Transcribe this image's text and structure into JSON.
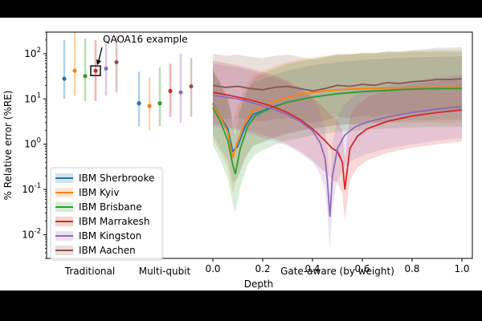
{
  "chart_data": {
    "type": "line",
    "title": "",
    "xlabel": "Depth",
    "ylabel": "% Relative error (%RE)",
    "yscale": "log",
    "ylim": [
      0.003,
      300
    ],
    "xlim": [
      -0.03,
      1.03
    ],
    "grid": false,
    "legend_position": "bottom-left",
    "section_labels": [
      "Traditional",
      "Multi-qubit",
      "Gate-aware (by weight)"
    ],
    "x_ticks": [
      "0.0",
      "0.2",
      "0.4",
      "0.6",
      "0.8",
      "1.0"
    ],
    "y_ticks": [
      {
        "base": "10",
        "exp": "-2",
        "value": 0.01
      },
      {
        "base": "10",
        "exp": "-1",
        "value": 0.1
      },
      {
        "base": "10",
        "exp": "0",
        "value": 1
      },
      {
        "base": "10",
        "exp": "1",
        "value": 10
      },
      {
        "base": "10",
        "exp": "2",
        "value": 100
      }
    ],
    "annotation": {
      "text": "QAOA16 example",
      "target_group": "traditional",
      "target_series": "IBM Marrakesh"
    },
    "series": [
      {
        "name": "IBM Sherbrooke",
        "color": "#1f77b4",
        "traditional": {
          "value": 28,
          "low": 10,
          "high": 200
        },
        "multi_qubit": {
          "value": 8,
          "low": 2.5,
          "high": 40
        },
        "gate_aware": {
          "x": [
            0,
            0.03,
            0.06,
            0.08,
            0.1,
            0.13,
            0.16,
            0.2,
            0.25,
            0.3,
            0.4,
            0.5,
            0.6,
            0.7,
            0.8,
            0.9,
            1.0
          ],
          "y": [
            8,
            4,
            2.2,
            0.7,
            0.9,
            2.5,
            4.5,
            5.5,
            7,
            8.5,
            11,
            13,
            14.5,
            15.5,
            16.5,
            17,
            17.5
          ],
          "band": 5
        }
      },
      {
        "name": "IBM Kyiv",
        "color": "#ff7f0e",
        "traditional": {
          "value": 42,
          "low": 12,
          "high": 320
        },
        "multi_qubit": {
          "value": 7,
          "low": 2,
          "high": 30
        },
        "gate_aware": {
          "x": [
            0,
            0.03,
            0.06,
            0.08,
            0.1,
            0.13,
            0.16,
            0.2,
            0.25,
            0.3,
            0.4,
            0.5,
            0.6,
            0.7,
            0.8,
            0.9,
            1.0
          ],
          "y": [
            7.5,
            4,
            1.8,
            0.5,
            1.2,
            3,
            5.5,
            7,
            9,
            11,
            14,
            16,
            17,
            17.5,
            18,
            18,
            18
          ],
          "band": 6
        }
      },
      {
        "name": "IBM Brisbane",
        "color": "#2ca02c",
        "traditional": {
          "value": 32,
          "low": 9,
          "high": 220
        },
        "multi_qubit": {
          "value": 8,
          "low": 2.5,
          "high": 50
        },
        "gate_aware": {
          "x": [
            0,
            0.03,
            0.06,
            0.08,
            0.09,
            0.11,
            0.14,
            0.17,
            0.2,
            0.25,
            0.3,
            0.4,
            0.5,
            0.6,
            0.7,
            0.8,
            0.9,
            1.0
          ],
          "y": [
            6.5,
            3.2,
            1.2,
            0.35,
            0.22,
            0.8,
            2.5,
            4.2,
            5.2,
            6.8,
            8.5,
            11,
            13,
            14.5,
            15.5,
            16.5,
            17,
            17
          ],
          "band": 7
        }
      },
      {
        "name": "IBM Marrakesh",
        "color": "#d62728",
        "traditional": {
          "value": 42,
          "low": 9,
          "high": 200
        },
        "multi_qubit": {
          "value": 15,
          "low": 4,
          "high": 60
        },
        "gate_aware": {
          "x": [
            0,
            0.05,
            0.1,
            0.15,
            0.2,
            0.25,
            0.3,
            0.35,
            0.4,
            0.45,
            0.48,
            0.5,
            0.52,
            0.53,
            0.55,
            0.58,
            0.62,
            0.7,
            0.8,
            0.9,
            1.0
          ],
          "y": [
            14,
            12.5,
            11,
            9.5,
            8,
            6.5,
            5,
            3.5,
            2.2,
            1.2,
            0.8,
            0.7,
            0.4,
            0.1,
            0.8,
            1.5,
            2.2,
            3.2,
            4.2,
            5,
            5.7
          ],
          "band": 5
        }
      },
      {
        "name": "IBM Kingston",
        "color": "#9467bd",
        "traditional": {
          "value": 47,
          "low": 12,
          "high": 220
        },
        "multi_qubit": {
          "value": 14,
          "low": 3,
          "high": 100
        },
        "gate_aware": {
          "x": [
            0,
            0.05,
            0.1,
            0.15,
            0.2,
            0.25,
            0.3,
            0.35,
            0.4,
            0.43,
            0.45,
            0.46,
            0.47,
            0.48,
            0.5,
            0.53,
            0.57,
            0.62,
            0.7,
            0.8,
            0.9,
            1.0
          ],
          "y": [
            12,
            11,
            10,
            8.5,
            7,
            5.8,
            4.5,
            3.2,
            2,
            1.1,
            0.5,
            0.15,
            0.025,
            0.2,
            0.8,
            1.6,
            2.4,
            3.1,
            4,
            5,
            6,
            6.8
          ],
          "band": 5
        }
      },
      {
        "name": "IBM Aachen",
        "color": "#8c564b",
        "traditional": {
          "value": 65,
          "low": 14,
          "high": 240
        },
        "multi_qubit": {
          "value": 19,
          "low": 4,
          "high": 80
        },
        "gate_aware": {
          "x": [
            0,
            0.05,
            0.1,
            0.15,
            0.2,
            0.25,
            0.3,
            0.35,
            0.4,
            0.45,
            0.5,
            0.55,
            0.6,
            0.65,
            0.7,
            0.75,
            0.8,
            0.85,
            0.9,
            0.95,
            1.0
          ],
          "y": [
            20,
            18,
            19,
            17,
            16,
            18,
            19,
            17,
            15,
            17,
            20,
            19,
            21,
            20,
            23,
            22,
            24,
            25,
            27,
            27,
            28
          ],
          "band": 5
        }
      }
    ]
  }
}
